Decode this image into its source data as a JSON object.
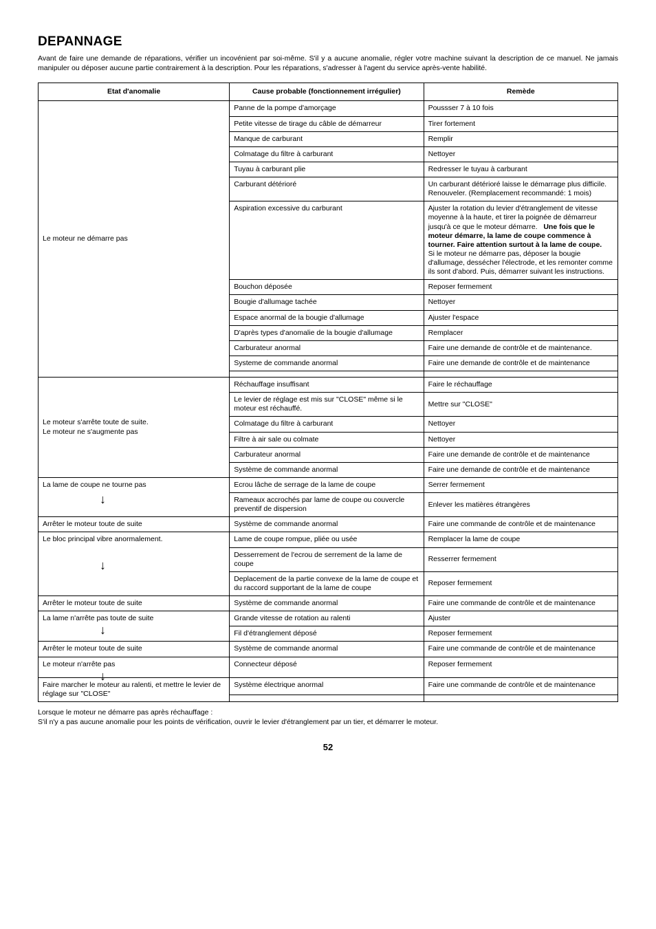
{
  "title": "DEPANNAGE",
  "intro": "Avant de faire une demande de réparations, vérifier un incovénient par soi-même. S'il y a aucune anomalie, régler votre machine suivant la description de ce manuel. Ne jamais manipuler ou déposer aucune partie contrairement à la description. Pour les réparations, s'adresser à l'agent du service après-vente habilité.",
  "headers": {
    "state": "Etat d'anomalie",
    "cause": "Cause probable (fonctionnement irrégulier)",
    "remedy": "Remède"
  },
  "sections": [
    {
      "state_cells": [
        {
          "html": "Le moteur ne démarre pas",
          "rowspan": 14,
          "valign": "middle"
        }
      ],
      "rows": [
        {
          "cause": "Panne de la pompe d'amorçage",
          "remedy": "Poussser 7 à 10 fois"
        },
        {
          "cause": "Petite vitesse de tirage du câble de démarreur",
          "remedy": "Tirer fortement"
        },
        {
          "cause": "Manque de carburant",
          "remedy": "Remplir"
        },
        {
          "cause": "Colmatage du filtre à carburant",
          "remedy": "Nettoyer"
        },
        {
          "cause": "Tuyau à carburant plie",
          "remedy": "Redresser le tuyau à carburant"
        },
        {
          "cause": "Carburant détérioré",
          "remedy": "Un carburant détérioré laisse le démarrage plus difficile. Renouveler. (Remplacement recommandé: 1 mois)"
        },
        {
          "cause": "Aspiration excessive du carburant",
          "remedy_html": "Ajuster la rotation du levier d'étranglement de vitesse moyenne à la haute, et tirer la poignée de démarreur jusqu'à ce que le moteur démarre. &nbsp;&nbsp;<span class=\"bold\">Une fois que le moteur démarre, la lame de coupe commence à tourner. Faire attention surtout à la lame de coupe.</span><br>Si le moteur ne démarre pas, déposer la bougie d'allumage, dessécher l'électrode, et les remonter comme ils sont d'abord. Puis, démarrer suivant les instructions."
        },
        {
          "cause": "Bouchon déposée",
          "remedy": "Reposer fermement"
        },
        {
          "cause": "Bougie d'allumage tachée",
          "remedy": "Nettoyer"
        },
        {
          "cause": "Espace anormal de la bougie d'allumage",
          "remedy": "Ajuster l'espace"
        },
        {
          "cause": "D'après types d'anomalie de la bougie d'allumage",
          "remedy": "Remplacer"
        },
        {
          "cause": "Carburateur anormal",
          "remedy": "Faire une demande de contrôle et de maintenance."
        },
        {
          "cause": "Systeme de commande anormal",
          "remedy": "Faire une demande de contrôle et de maintenance"
        },
        {
          "cause": "",
          "remedy": ""
        }
      ]
    },
    {
      "state_cells": [
        {
          "html": "Le moteur s'arrête toute de suite.<br>Le moteur ne s'augmente pas",
          "rowspan": 6,
          "valign": "middle"
        }
      ],
      "rows": [
        {
          "cause": "Réchauffage insuffisant",
          "remedy": "Faire le réchauffage"
        },
        {
          "cause": "Le levier de réglage est mis sur \"CLOSE\" même si le moteur est réchauffé.",
          "remedy": "Mettre sur \"CLOSE\"",
          "remedy_valign": "middle"
        },
        {
          "cause": "Colmatage du filtre à carburant",
          "remedy": "Nettoyer"
        },
        {
          "cause": "Filtre à air sale ou colmate",
          "remedy": "Nettoyer"
        },
        {
          "cause": "Carburateur anormal",
          "remedy": "Faire une demande de contrôle et de maintenance"
        },
        {
          "cause": "Système de commande anormal",
          "remedy": "Faire une demande de contrôle et de maintenance"
        }
      ]
    },
    {
      "state_cells": [
        {
          "html": "La lame de coupe ne tourne pas<div style=\"position:relative;height:12px;\"><span class=\"arrow\" style=\"top:14px;\">&#8595;</span></div>",
          "rowspan": 2
        },
        {
          "html": "Arrêter le moteur toute de suite",
          "rowspan": 1,
          "valign": "middle"
        }
      ],
      "rows": [
        {
          "cause": "Ecrou lâche de serrage de la lame de coupe",
          "remedy": "Serrer fermement"
        },
        {
          "cause": "Rameaux accrochés par lame de coupe ou couvercle preventif de dispersion",
          "remedy": "Enlever les matières étrangères",
          "remedy_valign": "middle"
        },
        {
          "cause": "Système de commande anormal",
          "remedy": "Faire une commande de contrôle et de maintenance"
        }
      ]
    },
    {
      "state_cells": [
        {
          "html": "Le bloc principal vibre anormalement.<div style=\"position:relative;height:42px;\"><span class=\"arrow\" style=\"top:30px;\">&#8595;</span></div>",
          "rowspan": 3
        },
        {
          "html": "Arrêter le moteur toute de suite",
          "rowspan": 1,
          "valign": "middle"
        }
      ],
      "rows": [
        {
          "cause": "Lame de coupe rompue, pliée ou usée",
          "remedy": "Remplacer la lame de coupe"
        },
        {
          "cause": "Desserrement de l'ecrou de serrement de la lame de coupe",
          "remedy": "Resserrer fermement",
          "remedy_valign": "middle"
        },
        {
          "cause": "Deplacement de la partie convexe de la lame de coupe et du raccord supportant de la lame de coupe",
          "remedy": "Reposer fermement",
          "remedy_valign": "middle"
        },
        {
          "cause": "Système de commande anormal",
          "remedy": "Faire une commande de contrôle et de maintenance"
        }
      ]
    },
    {
      "state_cells": [
        {
          "html": "La lame n'arrête pas toute de suite<div style=\"position:relative;height:8px;\"><span class=\"arrow\" style=\"top:10px;\">&#8595;</span></div>",
          "rowspan": 2
        },
        {
          "html": "Arrêter le moteur toute de suite",
          "rowspan": 1,
          "valign": "middle"
        }
      ],
      "rows": [
        {
          "cause": "Grande vitesse de rotation au ralenti",
          "remedy": "Ajuster"
        },
        {
          "cause": "Fil d'étranglement déposé",
          "remedy": "Reposer fermement"
        },
        {
          "cause": "Système de commande anormal",
          "remedy": "Faire une commande de contrôle et de maintenance"
        }
      ]
    },
    {
      "state_cells": [
        {
          "html": "Le moteur n'arrête pas<div style=\"position:relative;height:8px;\"><span class=\"arrow\" style=\"top:10px;\">&#8595;</span></div>",
          "rowspan": 1
        },
        {
          "html": "Faire marcher le moteur au ralenti, et mettre le levier de réglage sur \"CLOSE\"",
          "rowspan": 2
        }
      ],
      "rows": [
        {
          "cause": "Connecteur déposé",
          "remedy": "Reposer fermement"
        },
        {
          "cause": "Système électrique anormal",
          "remedy": "Faire une commande de contrôle et de maintenance"
        },
        {
          "cause": "",
          "remedy": ""
        }
      ]
    }
  ],
  "footer1": "Lorsque le moteur ne démarre pas après réchauffage :",
  "footer2": "S'il n'y a pas aucune anomalie pour les points de vérification, ouvrir le levier d'étranglement par un tier, et démarrer le moteur.",
  "pagenum": "52"
}
